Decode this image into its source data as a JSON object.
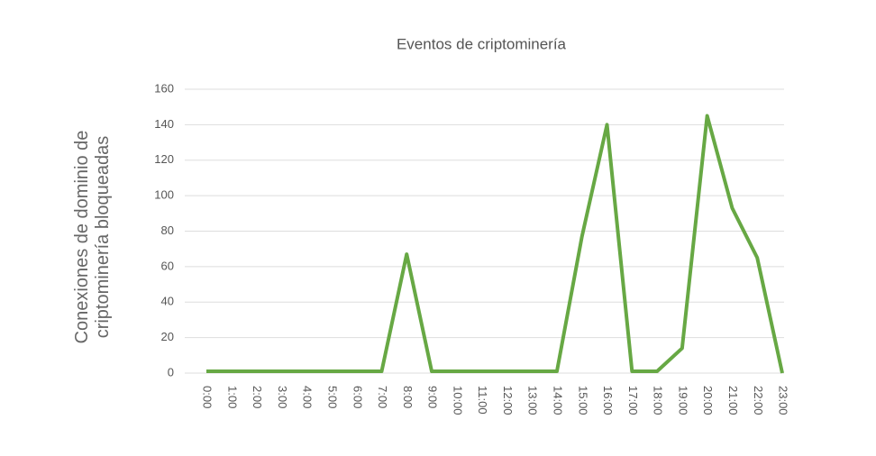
{
  "chart_data": {
    "type": "line",
    "title": "Eventos de criptominería",
    "y_label": "Conexiones de dominio de criptominería bloqueadas",
    "categories": [
      "0:00",
      "1:00",
      "2:00",
      "3:00",
      "4:00",
      "5:00",
      "6:00",
      "7:00",
      "8:00",
      "9:00",
      "10:00",
      "11:00",
      "12:00",
      "13:00",
      "14:00",
      "15:00",
      "16:00",
      "17:00",
      "18:00",
      "19:00",
      "20:00",
      "21:00",
      "22:00",
      "23:00"
    ],
    "series": [
      {
        "name": "Eventos",
        "color": "#67a844",
        "values": [
          1,
          1,
          1,
          1,
          1,
          1,
          1,
          1,
          67,
          1,
          1,
          1,
          1,
          1,
          1,
          77,
          140,
          1,
          1,
          14,
          145,
          93,
          65,
          0
        ]
      }
    ],
    "ylim": [
      0,
      160
    ],
    "yticks": [
      0,
      20,
      40,
      60,
      80,
      100,
      120,
      140,
      160
    ],
    "grid": true
  }
}
